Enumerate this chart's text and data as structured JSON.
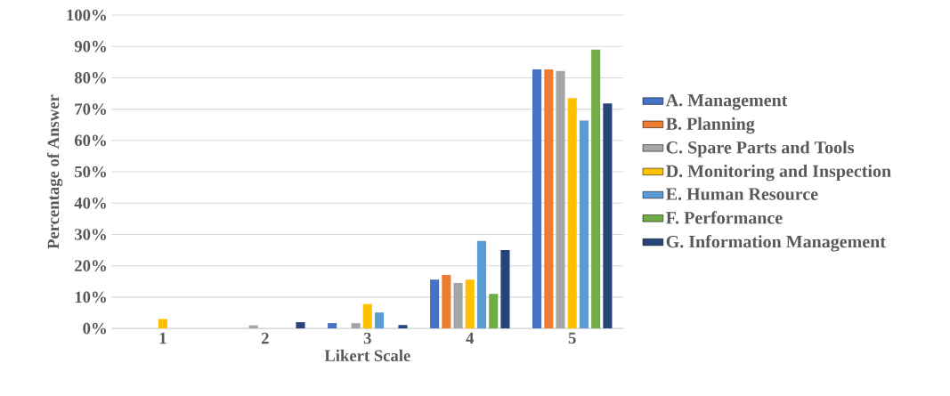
{
  "chart_data": {
    "type": "bar",
    "xlabel": "Likert Scale",
    "ylabel": "Percentage of Answer",
    "categories": [
      "1",
      "2",
      "3",
      "4",
      "5"
    ],
    "series": [
      {
        "name": "A. Management",
        "color": "#4472c4",
        "values": [
          0,
          0,
          1.7,
          15.6,
          82.7
        ]
      },
      {
        "name": "B. Planning",
        "color": "#ed7d31",
        "values": [
          0,
          0,
          0,
          17.1,
          82.7
        ]
      },
      {
        "name": "C. Spare Parts and Tools",
        "color": "#a5a5a5",
        "values": [
          0,
          1.0,
          1.7,
          14.5,
          82.2
        ]
      },
      {
        "name": "D. Monitoring and Inspection",
        "color": "#ffc000",
        "values": [
          3.0,
          0,
          7.8,
          15.6,
          73.5
        ]
      },
      {
        "name": "E. Human Resource",
        "color": "#5b9bd5",
        "values": [
          0,
          0,
          5.1,
          27.9,
          66.4
        ]
      },
      {
        "name": "F. Performance",
        "color": "#70ad47",
        "values": [
          0,
          0,
          0,
          11.0,
          89.0
        ]
      },
      {
        "name": "G. Information Management",
        "color": "#264478",
        "values": [
          0,
          2.0,
          1.1,
          25.0,
          71.8
        ]
      }
    ],
    "ylim": [
      0,
      100
    ],
    "yticks": [
      {
        "value": 0,
        "label": "0%"
      },
      {
        "value": 10,
        "label": "10%"
      },
      {
        "value": 20,
        "label": "20%"
      },
      {
        "value": 30,
        "label": "30%"
      },
      {
        "value": 40,
        "label": "40%"
      },
      {
        "value": 50,
        "label": "50%"
      },
      {
        "value": 60,
        "label": "60%"
      },
      {
        "value": 70,
        "label": "70%"
      },
      {
        "value": 80,
        "label": "80%"
      },
      {
        "value": 90,
        "label": "90%"
      },
      {
        "value": 100,
        "label": "100%"
      }
    ],
    "grid": "y",
    "legend": "right"
  }
}
